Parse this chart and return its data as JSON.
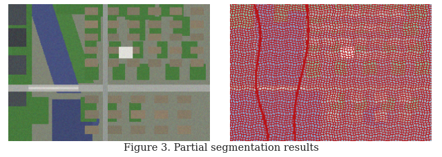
{
  "caption": "Figure 3. Partial segmentation results",
  "caption_fontsize": 10.5,
  "fig_width": 6.4,
  "fig_height": 2.28,
  "dpi": 100,
  "background_color": "#ffffff",
  "caption_color": "#222222",
  "left_panel": {
    "water_color": [
      0.28,
      0.32,
      0.5
    ],
    "vegetation_color": [
      0.32,
      0.52,
      0.3
    ],
    "building_color": [
      0.52,
      0.48,
      0.4
    ],
    "road_color": [
      0.6,
      0.62,
      0.6
    ],
    "dark_building_color": [
      0.28,
      0.3,
      0.32
    ]
  },
  "right_panel": {
    "water_color": [
      0.55,
      0.6,
      0.75
    ],
    "vegetation_color": [
      0.55,
      0.72,
      0.62
    ],
    "building_color": [
      0.7,
      0.72,
      0.72
    ],
    "road_color": [
      0.72,
      0.74,
      0.76
    ],
    "segment_line_color": [
      0.72,
      0.08,
      0.1
    ],
    "dark_blue_color": [
      0.42,
      0.48,
      0.65
    ]
  }
}
